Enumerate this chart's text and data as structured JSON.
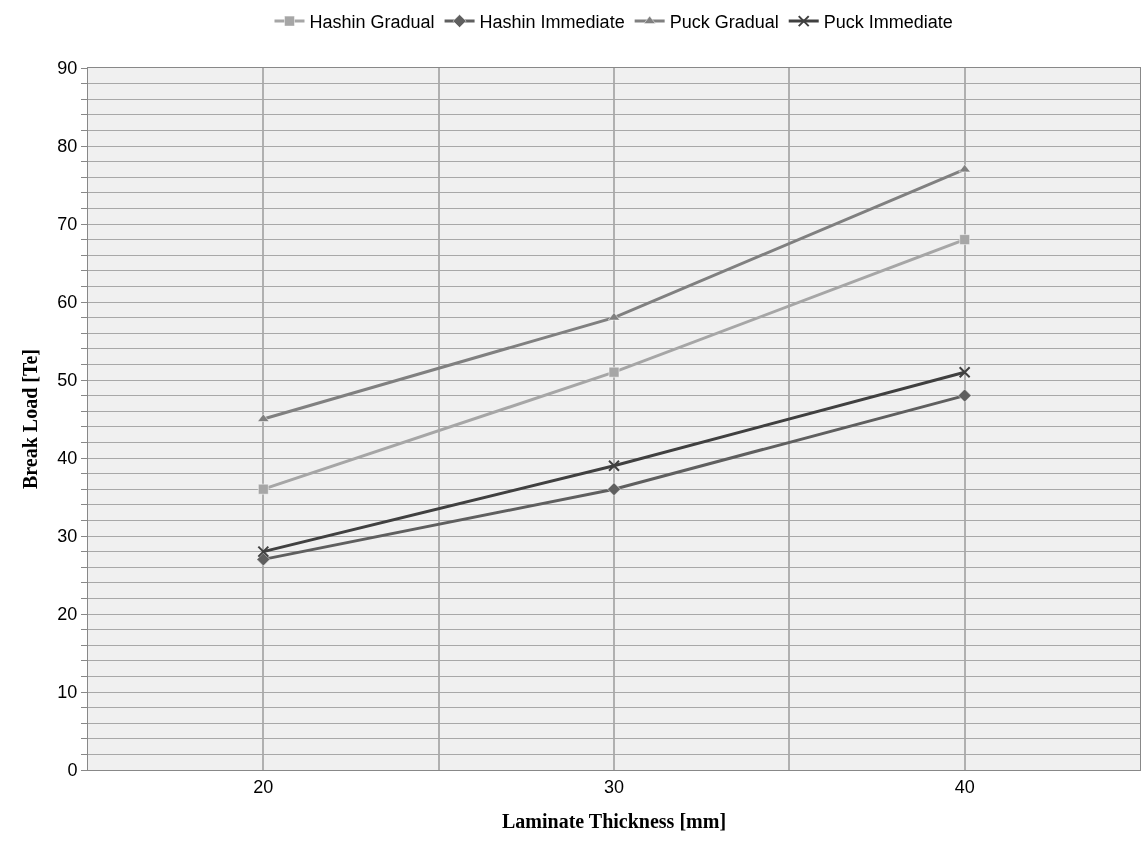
{
  "chart_data": {
    "type": "line",
    "xlabel": "Laminate Thickness [mm]",
    "ylabel": "Break Load [Te]",
    "x": [
      20,
      30,
      40
    ],
    "series": [
      {
        "name": "Hashin Gradual",
        "color": "#a6a6a6",
        "marker": "square",
        "values": [
          36,
          51,
          68
        ]
      },
      {
        "name": "Hashin Immediate",
        "color": "#5f5f5f",
        "marker": "diamond",
        "values": [
          27,
          36,
          48
        ]
      },
      {
        "name": "Puck Gradual",
        "color": "#808080",
        "marker": "triangle",
        "values": [
          45,
          58,
          77
        ]
      },
      {
        "name": "Puck Immediate",
        "color": "#404040",
        "marker": "cross",
        "values": [
          28,
          39,
          51
        ]
      }
    ],
    "xlim": [
      15,
      45
    ],
    "xticks": [
      20,
      {
        "value": 25,
        "label": null
      },
      30,
      {
        "value": 35,
        "label": null
      },
      40
    ],
    "ylim": [
      0,
      90
    ],
    "yticks": [
      0,
      {
        "value": 2,
        "label": null
      },
      {
        "value": 4,
        "label": null
      },
      {
        "value": 6,
        "label": null
      },
      {
        "value": 8,
        "label": null
      },
      10,
      {
        "value": 12,
        "label": null
      },
      {
        "value": 14,
        "label": null
      },
      {
        "value": 16,
        "label": null
      },
      {
        "value": 18,
        "label": null
      },
      20,
      {
        "value": 22,
        "label": null
      },
      {
        "value": 24,
        "label": null
      },
      {
        "value": 26,
        "label": null
      },
      {
        "value": 28,
        "label": null
      },
      30,
      {
        "value": 32,
        "label": null
      },
      {
        "value": 34,
        "label": null
      },
      {
        "value": 36,
        "label": null
      },
      {
        "value": 38,
        "label": null
      },
      40,
      {
        "value": 42,
        "label": null
      },
      {
        "value": 44,
        "label": null
      },
      {
        "value": 46,
        "label": null
      },
      {
        "value": 48,
        "label": null
      },
      50,
      {
        "value": 52,
        "label": null
      },
      {
        "value": 54,
        "label": null
      },
      {
        "value": 56,
        "label": null
      },
      {
        "value": 58,
        "label": null
      },
      60,
      {
        "value": 62,
        "label": null
      },
      {
        "value": 64,
        "label": null
      },
      {
        "value": 66,
        "label": null
      },
      {
        "value": 68,
        "label": null
      },
      70,
      {
        "value": 72,
        "label": null
      },
      {
        "value": 74,
        "label": null
      },
      {
        "value": 76,
        "label": null
      },
      {
        "value": 78,
        "label": null
      },
      80,
      {
        "value": 82,
        "label": null
      },
      {
        "value": 84,
        "label": null
      },
      {
        "value": 86,
        "label": null
      },
      {
        "value": 88,
        "label": null
      },
      90
    ],
    "grid": true,
    "legend": "top",
    "line_style": "solid"
  }
}
